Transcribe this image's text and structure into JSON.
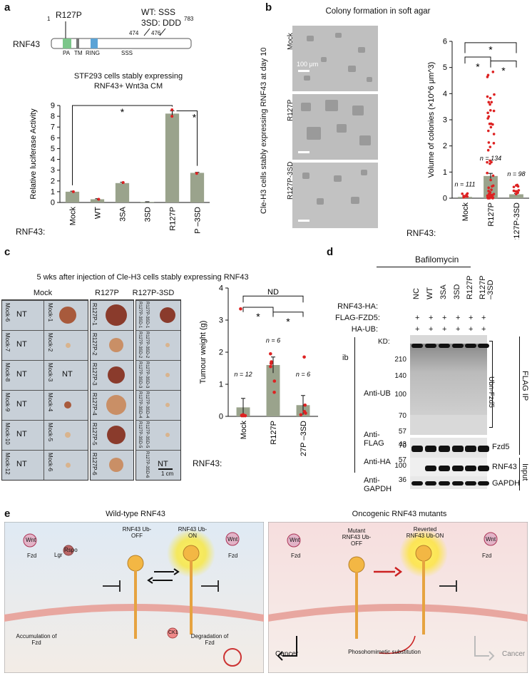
{
  "panels": {
    "a": "a",
    "b": "b",
    "c": "c",
    "d": "d",
    "e": "e"
  },
  "panel_a": {
    "mutation_label": "R127P",
    "wt_line": "WT:  SSS",
    "sd_line": "3SD: DDD",
    "pos_474": "474",
    "pos_476": "476",
    "protein": "RNF43",
    "start": "1",
    "end": "783",
    "domains": [
      "PA",
      "TM",
      "RING",
      "SSS"
    ],
    "chart_title_1": "STF293 cells stably expressing",
    "chart_title_2": "RNF43+ Wnt3a CM",
    "row_label": "RNF43:",
    "star_1": "*",
    "star_2": "*"
  },
  "panel_b": {
    "title": "Colony formation in soft agar",
    "side_label": "Cle-H3 cells stably expressing RNF43 at day 10",
    "rows": [
      "Mock",
      "R127P",
      "R127P-3SD"
    ],
    "scale": "100 μm",
    "row_label": "RNF43:",
    "n_labels": [
      "n = 111",
      "n = 134",
      "n = 98"
    ],
    "stars": [
      "*",
      "*",
      "*"
    ]
  },
  "panel_c": {
    "title": "5 wks after injection of Cle-H3 cells stably expressing RNF43",
    "groups": [
      "Mock",
      "R127P",
      "R127P-3SD"
    ],
    "nt": "NT",
    "mock_left": [
      "Mock-6",
      "Mock-7",
      "Mock-8",
      "Mock-9",
      "Mock-10",
      "Mock-12"
    ],
    "mock_right": [
      "Mock-1",
      "Mock-2",
      "Mock-3",
      "Mock-4",
      "Mock-5",
      "Mock-6"
    ],
    "mock_right_nt": [
      false,
      false,
      true,
      false,
      false,
      false
    ],
    "r127p": [
      "R127P-1",
      "R127P-2",
      "R127P-3",
      "R127P-4",
      "R127P-5",
      "R127P-6"
    ],
    "sd_left": [
      "R127P-3SD-1",
      "R127P-3SD-2",
      "R127P-3SD-3",
      "R127P-3SD-4",
      "R127P-3SD-5"
    ],
    "sd_right": [
      "R127P-3SD-1",
      "R127P-3SD-2",
      "R127P-3SD-3",
      "R127P-3SD-4",
      "R127P-3SD-5",
      "R127P-3SD-6"
    ],
    "scale": "1 cm",
    "row_label": "RNF43:",
    "n_labels": [
      "n = 12",
      "n = 6",
      "n = 6"
    ],
    "nd": "ND",
    "stars": [
      "*",
      "*"
    ]
  },
  "panel_d": {
    "treatment": "Bafilomycin",
    "row_headers": [
      "RNF43-HA:",
      "FLAG-FZD5:",
      "HA-UB:"
    ],
    "lanes": [
      "NC",
      "WT",
      "3SA",
      "3SD",
      "R127P",
      "R127P –3SD"
    ],
    "flag_row": [
      "+",
      "+",
      "+",
      "+",
      "+",
      "+"
    ],
    "ub_row": [
      "+",
      "+",
      "+",
      "+",
      "+",
      "+"
    ],
    "kd": "KD:",
    "markers": [
      "210",
      "140",
      "100",
      "70",
      "57",
      "43",
      "70",
      "57",
      "100",
      "36"
    ],
    "antibodies": [
      "Anti-UB",
      "Anti-FLAG",
      "Anti-HA",
      "Anti-GAPDH"
    ],
    "ib": "ib",
    "right_labels": [
      "Ubn-Fzd5",
      "Fzd5",
      "RNF43",
      "GAPDH"
    ],
    "ip_labels": [
      "FLAG IP",
      "Input"
    ]
  },
  "panel_e": {
    "left_title": "Wild-type RNF43",
    "right_title": "Oncogenic RNF43 mutants",
    "left_labels": [
      "Wnt",
      "Fzd",
      "Lgr",
      "Rspo",
      "RNF43 Ub-OFF",
      "RNF43 Ub-ON",
      "Wnt",
      "Fzd",
      "CK1",
      "Accumulation of Fzd",
      "Degradation of Fzd"
    ],
    "right_labels": [
      "Wnt",
      "Fzd",
      "Mutant RNF43 Ub-OFF",
      "Reverted RNF43 Ub-ON",
      "Wnt",
      "Fzd",
      "Cancer",
      "Cancer",
      "Phosohomimetic substitution"
    ]
  },
  "chart_data": [
    {
      "type": "bar",
      "title": "STF293 cells stably expressing RNF43+ Wnt3a CM",
      "categories": [
        "Mock",
        "WT",
        "3SA",
        "3SD",
        "R127P",
        "R127P –3SD"
      ],
      "values": [
        1.0,
        0.3,
        1.8,
        0.05,
        8.25,
        2.75
      ],
      "ylabel": "Relative luciferase Activity",
      "ylim": [
        0,
        9
      ],
      "yticks": [
        0,
        1,
        2,
        3,
        4,
        5,
        6,
        7,
        8,
        9
      ],
      "bar_color": "#9aa38c"
    },
    {
      "type": "bar",
      "categories": [
        "Mock",
        "R127P",
        "R127P-3SD"
      ],
      "values": [
        0.05,
        0.85,
        0.15
      ],
      "ylabel": "Volume of colonies (×10^6 μm^3)",
      "ylim": [
        0,
        6
      ],
      "yticks": [
        0,
        1,
        2,
        3,
        4,
        5,
        6
      ],
      "bar_color": "#9aa38c"
    },
    {
      "type": "bar",
      "categories": [
        "Mock",
        "R127P",
        "R127P –3SD"
      ],
      "values": [
        0.28,
        1.6,
        0.35
      ],
      "ylabel": "Tumour weight (g)",
      "ylim": [
        0,
        4
      ],
      "yticks": [
        0,
        1,
        2,
        3,
        4
      ],
      "bar_color": "#9aa38c"
    }
  ]
}
